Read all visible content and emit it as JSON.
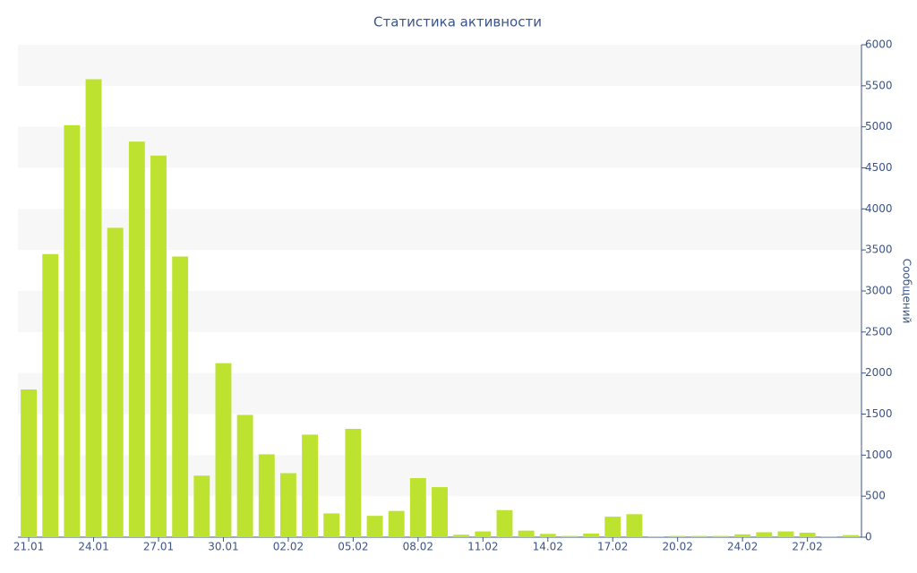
{
  "chart_data": {
    "type": "bar",
    "title": "Статистика активности",
    "y_label": "Сообщений",
    "categories": [
      "21.01",
      null,
      null,
      "24.01",
      null,
      null,
      "27.01",
      null,
      null,
      "30.01",
      null,
      null,
      "02.02",
      null,
      null,
      "05.02",
      null,
      null,
      "08.02",
      null,
      null,
      "11.02",
      null,
      null,
      "14.02",
      null,
      null,
      "17.02",
      null,
      null,
      "20.02",
      null,
      null,
      "24.02",
      null,
      null,
      "27.02",
      null,
      null
    ],
    "values": [
      1800,
      3450,
      5020,
      5580,
      3770,
      4820,
      4650,
      3420,
      750,
      2120,
      1490,
      1010,
      780,
      1250,
      290,
      1320,
      260,
      320,
      720,
      610,
      30,
      70,
      330,
      80,
      40,
      15,
      45,
      250,
      280,
      10,
      15,
      15,
      15,
      35,
      60,
      70,
      55,
      10,
      25
    ],
    "color": "#bde22f",
    "ylim": [
      0,
      6000
    ],
    "yticks": [
      0,
      500,
      1000,
      1500,
      2000,
      2500,
      3000,
      3500,
      4000,
      4500,
      5000,
      5500,
      6000
    ],
    "grid": true
  }
}
